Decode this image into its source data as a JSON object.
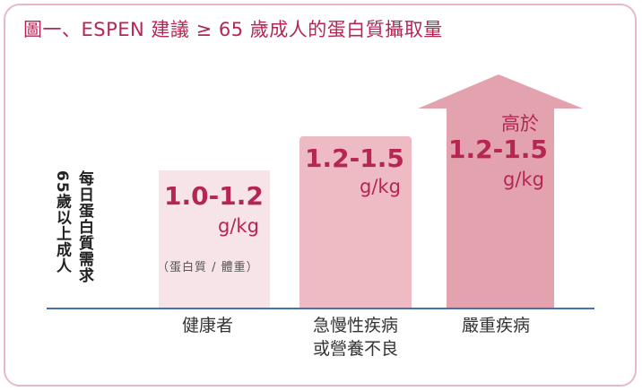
{
  "title": "圖一、ESPEN 建議 ≥ 65 歲成人的蛋白質攝取量",
  "y_label": {
    "line1": "每日蛋白質需求",
    "line2": "65歲以上成人"
  },
  "bars": [
    {
      "value": "1.0-1.2",
      "unit": "g/kg",
      "note": "（蛋白質 / 體重）",
      "category": "健康者"
    },
    {
      "value": "1.2-1.5",
      "unit": "g/kg",
      "category_line1": "急慢性疾病",
      "category_line2": "或營養不良"
    },
    {
      "prefix": "高於",
      "value": "1.2-1.5",
      "unit": "g/kg",
      "category": "嚴重疾病"
    }
  ],
  "colors": {
    "title": "#b52653",
    "frame": "#e7b9c7",
    "bar_light": "#f6e4e8",
    "bar_mid": "#eebbc5",
    "bar_dark": "#e3a3ae",
    "baseline": "#4472b0"
  }
}
